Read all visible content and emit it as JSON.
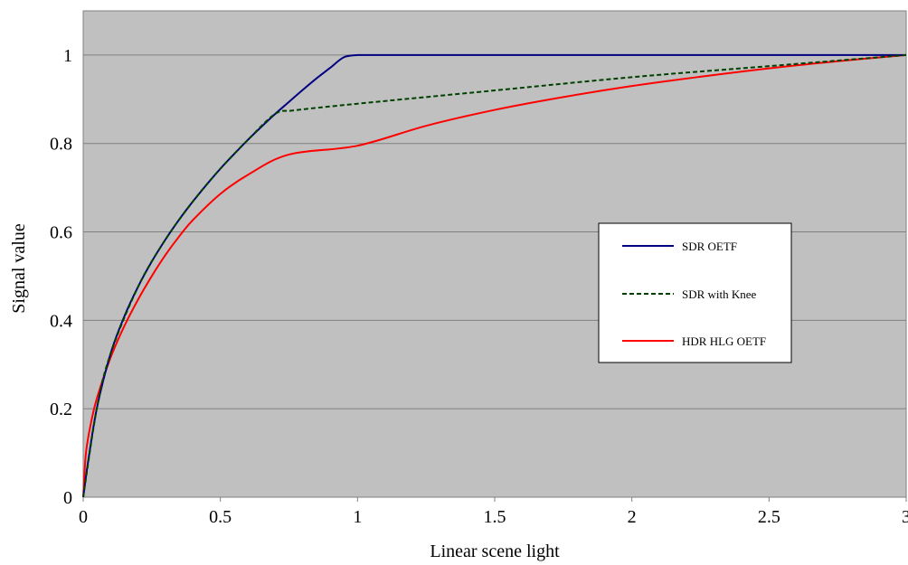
{
  "chart_data": {
    "type": "line",
    "xlabel": "Linear scene light",
    "ylabel": "Signal value",
    "xlim": [
      0,
      3
    ],
    "ylim": [
      0,
      1.1
    ],
    "x_ticks": [
      0,
      0.5,
      1,
      1.5,
      2,
      2.5,
      3
    ],
    "x_tick_labels": [
      "0",
      "0.5",
      "1",
      "1.5",
      "2",
      "2.5",
      "3"
    ],
    "y_ticks": [
      0,
      0.2,
      0.4,
      0.6,
      0.8,
      1
    ],
    "y_tick_labels": [
      "0",
      "0.2",
      "0.4",
      "0.6",
      "0.8",
      "1"
    ],
    "grid": "horizontal",
    "legend_position": "center-right",
    "plot_background": "#c0c0c0",
    "series": [
      {
        "name": "SDR OETF",
        "color": "#000080",
        "style": "solid",
        "points": [
          [
            0,
            0
          ],
          [
            0.018,
            0.081
          ],
          [
            0.05,
            0.202
          ],
          [
            0.1,
            0.325
          ],
          [
            0.15,
            0.409
          ],
          [
            0.2,
            0.476
          ],
          [
            0.25,
            0.533
          ],
          [
            0.3,
            0.583
          ],
          [
            0.35,
            0.628
          ],
          [
            0.4,
            0.669
          ],
          [
            0.45,
            0.707
          ],
          [
            0.5,
            0.743
          ],
          [
            0.55,
            0.776
          ],
          [
            0.6,
            0.808
          ],
          [
            0.65,
            0.838
          ],
          [
            0.7,
            0.867
          ],
          [
            0.75,
            0.894
          ],
          [
            0.8,
            0.921
          ],
          [
            0.85,
            0.947
          ],
          [
            0.9,
            0.971
          ],
          [
            0.95,
            0.995
          ],
          [
            1,
            1
          ],
          [
            3,
            1
          ]
        ]
      },
      {
        "name": "SDR with Knee",
        "color": "#004000",
        "style": "dashed",
        "points": [
          [
            0,
            0
          ],
          [
            0.05,
            0.202
          ],
          [
            0.1,
            0.325
          ],
          [
            0.2,
            0.476
          ],
          [
            0.3,
            0.583
          ],
          [
            0.4,
            0.669
          ],
          [
            0.5,
            0.743
          ],
          [
            0.6,
            0.808
          ],
          [
            0.7,
            0.867
          ],
          [
            0.77,
            0.875
          ],
          [
            1,
            0.89
          ],
          [
            1.5,
            0.92
          ],
          [
            2,
            0.95
          ],
          [
            2.5,
            0.975
          ],
          [
            3,
            1
          ]
        ]
      },
      {
        "name": "HDR HLG OETF",
        "color": "#ff0000",
        "style": "solid",
        "points": [
          [
            0,
            0
          ],
          [
            0.01,
            0.1
          ],
          [
            0.03,
            0.173
          ],
          [
            0.05,
            0.224
          ],
          [
            0.1,
            0.316
          ],
          [
            0.15,
            0.387
          ],
          [
            0.2,
            0.447
          ],
          [
            0.25,
            0.5
          ],
          [
            0.3,
            0.548
          ],
          [
            0.35,
            0.59
          ],
          [
            0.4,
            0.627
          ],
          [
            0.5,
            0.686
          ],
          [
            0.6,
            0.729
          ],
          [
            0.75,
            0.775
          ],
          [
            1,
            0.795
          ],
          [
            1.25,
            0.84
          ],
          [
            1.5,
            0.876
          ],
          [
            1.75,
            0.905
          ],
          [
            2,
            0.93
          ],
          [
            2.25,
            0.951
          ],
          [
            2.5,
            0.97
          ],
          [
            2.75,
            0.986
          ],
          [
            3,
            1
          ]
        ]
      }
    ]
  }
}
